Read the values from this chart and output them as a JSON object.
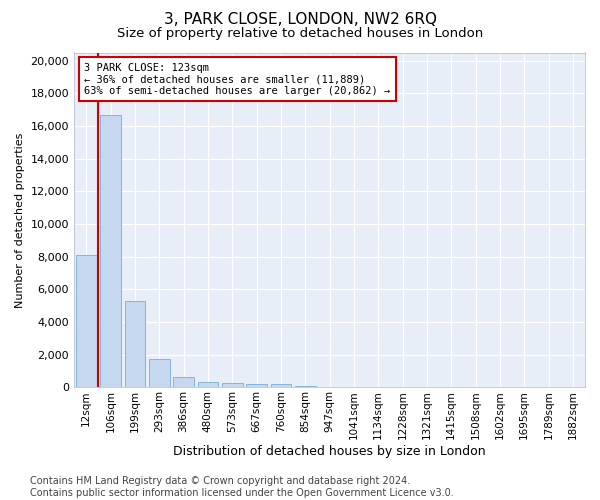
{
  "title1": "3, PARK CLOSE, LONDON, NW2 6RQ",
  "title2": "Size of property relative to detached houses in London",
  "xlabel": "Distribution of detached houses by size in London",
  "ylabel": "Number of detached properties",
  "categories": [
    "12sqm",
    "106sqm",
    "199sqm",
    "293sqm",
    "386sqm",
    "480sqm",
    "573sqm",
    "667sqm",
    "760sqm",
    "854sqm",
    "947sqm",
    "1041sqm",
    "1134sqm",
    "1228sqm",
    "1321sqm",
    "1415sqm",
    "1508sqm",
    "1602sqm",
    "1695sqm",
    "1789sqm",
    "1882sqm"
  ],
  "bar_heights": [
    8100,
    16700,
    5300,
    1750,
    650,
    350,
    270,
    210,
    180,
    100,
    50,
    0,
    0,
    0,
    0,
    0,
    0,
    0,
    0,
    0,
    0
  ],
  "bar_color": "#c5d8f0",
  "bar_edge_color": "#7aadd4",
  "annotation_box_text": "3 PARK CLOSE: 123sqm\n← 36% of detached houses are smaller (11,889)\n63% of semi-detached houses are larger (20,862) →",
  "annotation_box_color": "#ffffff",
  "annotation_box_edge_color": "#cc0000",
  "vline_color": "#cc0000",
  "ylim": [
    0,
    20500
  ],
  "yticks": [
    0,
    2000,
    4000,
    6000,
    8000,
    10000,
    12000,
    14000,
    16000,
    18000,
    20000
  ],
  "background_color": "#e8eef8",
  "grid_color": "#ffffff",
  "footer_text": "Contains HM Land Registry data © Crown copyright and database right 2024.\nContains public sector information licensed under the Open Government Licence v3.0.",
  "title1_fontsize": 11,
  "title2_fontsize": 9.5,
  "xlabel_fontsize": 9,
  "ylabel_fontsize": 8,
  "tick_fontsize": 8,
  "footer_fontsize": 7,
  "annot_fontsize": 7.5
}
